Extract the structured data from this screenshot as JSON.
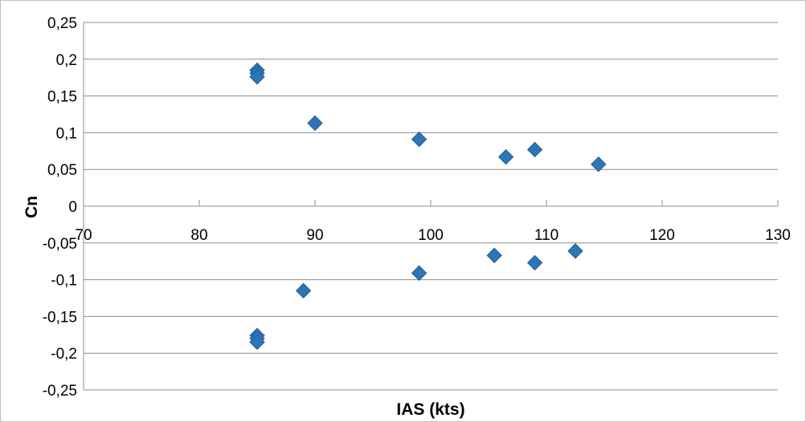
{
  "chart_data": {
    "type": "scatter",
    "title": "",
    "xlabel": "IAS (kts)",
    "ylabel": "Cn",
    "xlim": [
      70,
      130
    ],
    "ylim": [
      -0.25,
      0.25
    ],
    "x_ticks": [
      70,
      80,
      90,
      100,
      110,
      120,
      130
    ],
    "x_tick_labels": [
      "70",
      "80",
      "90",
      "100",
      "110",
      "120",
      "130"
    ],
    "y_ticks": [
      0.25,
      0.2,
      0.15,
      0.1,
      0.05,
      0,
      -0.05,
      -0.1,
      -0.15,
      -0.2,
      -0.25
    ],
    "y_tick_labels": [
      "0,25",
      "0,2",
      "0,15",
      "0,1",
      "0,05",
      "0",
      "-0,05",
      "-0,1",
      "-0,15",
      "-0,2",
      "-0,25"
    ],
    "grid": true,
    "legend": "none",
    "marker": "diamond",
    "color": "#2E75B6",
    "series": [
      {
        "points": [
          {
            "x": 85,
            "y": 0.185
          },
          {
            "x": 85,
            "y": 0.181
          },
          {
            "x": 85,
            "y": 0.176
          },
          {
            "x": 90,
            "y": 0.113
          },
          {
            "x": 99,
            "y": 0.091
          },
          {
            "x": 106.5,
            "y": 0.067
          },
          {
            "x": 109,
            "y": 0.077
          },
          {
            "x": 114.5,
            "y": 0.057
          },
          {
            "x": 85,
            "y": -0.176
          },
          {
            "x": 85,
            "y": -0.18
          },
          {
            "x": 85,
            "y": -0.185
          },
          {
            "x": 89,
            "y": -0.115
          },
          {
            "x": 99,
            "y": -0.091
          },
          {
            "x": 105.5,
            "y": -0.067
          },
          {
            "x": 109,
            "y": -0.077
          },
          {
            "x": 112.5,
            "y": -0.061
          }
        ]
      }
    ]
  }
}
